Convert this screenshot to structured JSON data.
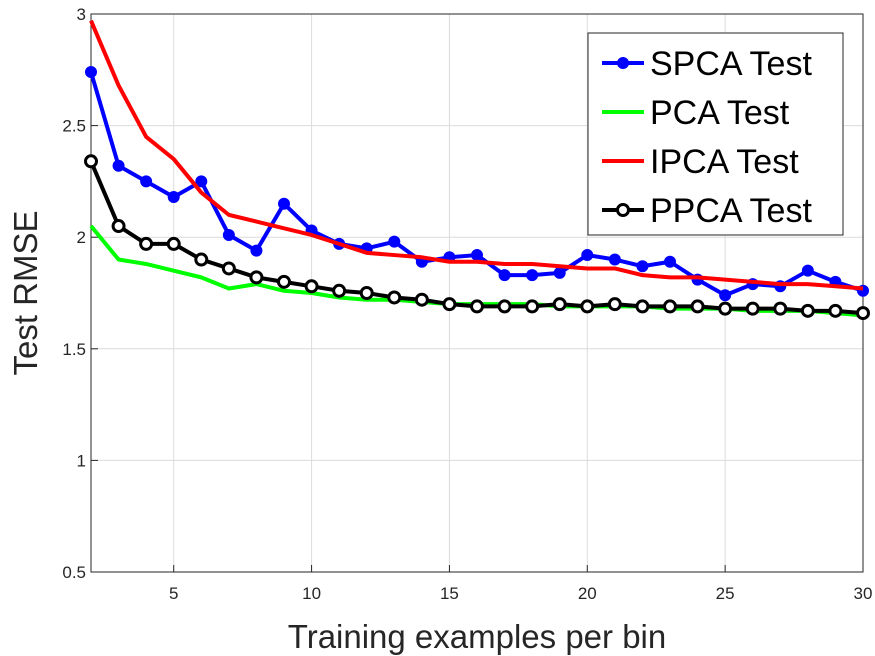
{
  "chart_data": {
    "type": "line",
    "title": "",
    "xlabel": "Training examples per bin",
    "ylabel": "Test RMSE",
    "xlim": [
      2,
      30
    ],
    "ylim": [
      0.5,
      3
    ],
    "xticks": [
      5,
      10,
      15,
      20,
      25,
      30
    ],
    "yticks": [
      0.5,
      1,
      1.5,
      2,
      2.5,
      3
    ],
    "ytick_labels": [
      "0.5",
      "1",
      "1.5",
      "2",
      "2.5",
      "3"
    ],
    "grid": true,
    "legend_position": "top-right",
    "x": [
      2,
      3,
      4,
      5,
      6,
      7,
      8,
      9,
      10,
      11,
      12,
      13,
      14,
      15,
      16,
      17,
      18,
      19,
      20,
      21,
      22,
      23,
      24,
      25,
      26,
      27,
      28,
      29,
      30
    ],
    "series": [
      {
        "name": "SPCA Test",
        "color": "#0000ff",
        "marker": "filled-circle",
        "values": [
          2.74,
          2.32,
          2.25,
          2.18,
          2.25,
          2.01,
          1.94,
          2.15,
          2.03,
          1.97,
          1.95,
          1.98,
          1.89,
          1.91,
          1.92,
          1.83,
          1.83,
          1.84,
          1.92,
          1.9,
          1.87,
          1.89,
          1.81,
          1.74,
          1.79,
          1.78,
          1.85,
          1.8,
          1.76
        ]
      },
      {
        "name": "PCA Test",
        "color": "#00ff00",
        "marker": "none",
        "values": [
          2.05,
          1.9,
          1.88,
          1.85,
          1.82,
          1.77,
          1.79,
          1.76,
          1.75,
          1.73,
          1.72,
          1.72,
          1.71,
          1.7,
          1.7,
          1.7,
          1.7,
          1.69,
          1.69,
          1.69,
          1.69,
          1.68,
          1.68,
          1.68,
          1.67,
          1.67,
          1.67,
          1.66,
          1.65
        ]
      },
      {
        "name": "IPCA Test",
        "color": "#ff0000",
        "marker": "none",
        "values": [
          2.97,
          2.68,
          2.45,
          2.35,
          2.2,
          2.1,
          2.07,
          2.04,
          2.01,
          1.97,
          1.93,
          1.92,
          1.91,
          1.89,
          1.89,
          1.88,
          1.88,
          1.87,
          1.86,
          1.86,
          1.83,
          1.82,
          1.82,
          1.81,
          1.8,
          1.79,
          1.79,
          1.78,
          1.77
        ]
      },
      {
        "name": "PPCA Test",
        "color": "#000000",
        "marker": "open-circle",
        "values": [
          2.34,
          2.05,
          1.97,
          1.97,
          1.9,
          1.86,
          1.82,
          1.8,
          1.78,
          1.76,
          1.75,
          1.73,
          1.72,
          1.7,
          1.69,
          1.69,
          1.69,
          1.7,
          1.69,
          1.7,
          1.69,
          1.69,
          1.69,
          1.68,
          1.68,
          1.68,
          1.67,
          1.67,
          1.66
        ]
      }
    ]
  }
}
